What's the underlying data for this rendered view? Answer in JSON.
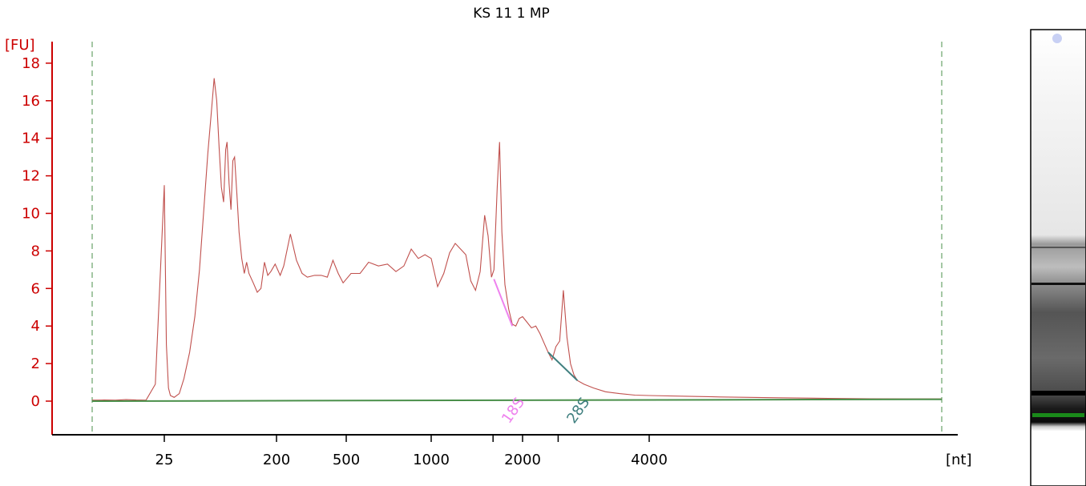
{
  "chart_data": {
    "type": "line",
    "title": "KS 11 1 MP",
    "ylabel": "[FU]",
    "xlabel": "[nt]",
    "ylim": [
      -1.8,
      19
    ],
    "yticks": [
      0,
      2,
      4,
      6,
      8,
      10,
      12,
      14,
      16,
      18
    ],
    "xticks": [
      "25",
      "200",
      "500",
      "1000",
      "2000",
      "4000"
    ],
    "grid": false,
    "series": [
      {
        "color": "#c0504d",
        "x_unit": "nt",
        "points": [
          [
            18,
            0.05
          ],
          [
            19,
            0.06
          ],
          [
            20,
            0.05
          ],
          [
            21,
            0.08
          ],
          [
            22,
            0.06
          ],
          [
            23,
            0.05
          ],
          [
            24,
            0.9
          ],
          [
            25,
            11.5
          ],
          [
            26,
            3.0
          ],
          [
            27,
            0.7
          ],
          [
            28,
            0.3
          ],
          [
            30,
            0.2
          ],
          [
            33,
            0.4
          ],
          [
            36,
            1.2
          ],
          [
            40,
            2.6
          ],
          [
            44,
            4.5
          ],
          [
            48,
            7.0
          ],
          [
            52,
            10.2
          ],
          [
            56,
            13.2
          ],
          [
            60,
            15.5
          ],
          [
            63,
            17.2
          ],
          [
            66,
            16.0
          ],
          [
            69,
            13.5
          ],
          [
            72,
            11.4
          ],
          [
            75,
            10.6
          ],
          [
            78,
            13.4
          ],
          [
            80,
            13.8
          ],
          [
            83,
            11.6
          ],
          [
            86,
            10.2
          ],
          [
            89,
            12.8
          ],
          [
            92,
            13.0
          ],
          [
            96,
            11.0
          ],
          [
            100,
            9.0
          ],
          [
            105,
            7.6
          ],
          [
            110,
            6.8
          ],
          [
            115,
            7.4
          ],
          [
            120,
            6.8
          ],
          [
            130,
            6.3
          ],
          [
            140,
            5.8
          ],
          [
            150,
            6.0
          ],
          [
            160,
            7.4
          ],
          [
            170,
            6.7
          ],
          [
            180,
            6.9
          ],
          [
            195,
            7.3
          ],
          [
            210,
            6.7
          ],
          [
            220,
            7.2
          ],
          [
            240,
            8.9
          ],
          [
            260,
            7.5
          ],
          [
            280,
            6.8
          ],
          [
            300,
            6.6
          ],
          [
            330,
            6.7
          ],
          [
            360,
            6.7
          ],
          [
            390,
            6.6
          ],
          [
            420,
            7.5
          ],
          [
            450,
            6.8
          ],
          [
            480,
            6.3
          ],
          [
            520,
            6.8
          ],
          [
            560,
            6.8
          ],
          [
            600,
            7.4
          ],
          [
            650,
            7.2
          ],
          [
            700,
            7.3
          ],
          [
            750,
            6.9
          ],
          [
            800,
            7.2
          ],
          [
            850,
            8.1
          ],
          [
            900,
            7.6
          ],
          [
            950,
            7.8
          ],
          [
            1000,
            7.6
          ],
          [
            1050,
            6.1
          ],
          [
            1100,
            6.8
          ],
          [
            1150,
            7.9
          ],
          [
            1200,
            8.4
          ],
          [
            1250,
            8.1
          ],
          [
            1300,
            7.8
          ],
          [
            1350,
            6.4
          ],
          [
            1400,
            5.9
          ],
          [
            1450,
            6.9
          ],
          [
            1500,
            9.9
          ],
          [
            1540,
            8.8
          ],
          [
            1580,
            6.6
          ],
          [
            1610,
            7.0
          ],
          [
            1650,
            11.4
          ],
          [
            1680,
            13.8
          ],
          [
            1710,
            9.0
          ],
          [
            1750,
            6.2
          ],
          [
            1800,
            4.9
          ],
          [
            1850,
            4.1
          ],
          [
            1900,
            4.0
          ],
          [
            1950,
            4.4
          ],
          [
            2000,
            4.5
          ],
          [
            2050,
            4.2
          ],
          [
            2100,
            3.9
          ],
          [
            2150,
            4.0
          ],
          [
            2200,
            3.6
          ],
          [
            2250,
            3.1
          ],
          [
            2300,
            2.6
          ],
          [
            2350,
            2.2
          ],
          [
            2400,
            2.9
          ],
          [
            2450,
            3.2
          ],
          [
            2500,
            5.9
          ],
          [
            2550,
            3.4
          ],
          [
            2600,
            2.0
          ],
          [
            2650,
            1.4
          ],
          [
            2700,
            1.1
          ],
          [
            2800,
            0.9
          ],
          [
            2950,
            0.7
          ],
          [
            3150,
            0.5
          ],
          [
            3400,
            0.4
          ],
          [
            3700,
            0.32
          ],
          [
            4000,
            0.3
          ],
          [
            4500,
            0.26
          ],
          [
            5000,
            0.22
          ],
          [
            6000,
            0.18
          ],
          [
            7000,
            0.15
          ],
          [
            8000,
            0.13
          ],
          [
            9000,
            0.12
          ],
          [
            10000,
            0.12
          ]
        ]
      },
      {
        "name": "18S",
        "color": "#ee82ee",
        "points": [
          [
            1610,
            6.5
          ],
          [
            1850,
            4.0
          ]
        ]
      },
      {
        "name": "28S",
        "color": "#3f7f7f",
        "points": [
          [
            2300,
            2.6
          ],
          [
            2700,
            1.1
          ]
        ]
      },
      {
        "color": "#4a8f4a",
        "points": [
          [
            18,
            0.0
          ],
          [
            10000,
            0.1
          ]
        ]
      }
    ],
    "annotations": [
      {
        "text": "18S",
        "color": "#ee82ee",
        "at_nt": 1850
      },
      {
        "text": "28S",
        "color": "#3f7f7f",
        "at_nt": 2700
      }
    ]
  },
  "gel_lane": {
    "marker_color": "#1a8a1a",
    "band_color": "#000000"
  }
}
